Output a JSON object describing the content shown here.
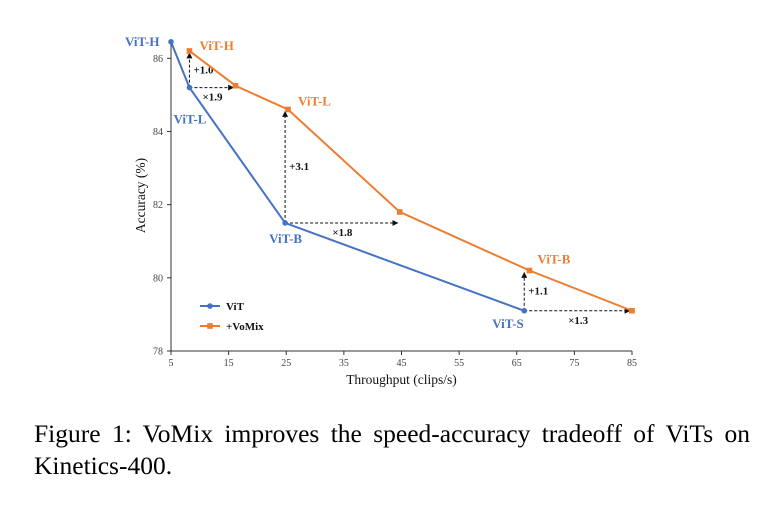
{
  "chart_data": {
    "type": "line",
    "xlabel": "Throughput (clips/s)",
    "ylabel": "Accuracy (%)",
    "xlim": [
      5,
      85
    ],
    "ylim": [
      78,
      86.5
    ],
    "xticks": [
      5,
      15,
      25,
      35,
      45,
      55,
      65,
      75,
      85
    ],
    "yticks": [
      78,
      80,
      82,
      84,
      86
    ],
    "series": [
      {
        "name": "ViT",
        "color": "#4472c4",
        "marker": "circle",
        "x": [
          5,
          8.2,
          24.8,
          66.3
        ],
        "y": [
          86.45,
          85.2,
          81.5,
          79.1
        ],
        "point_labels": [
          "ViT-H",
          "ViT-L",
          "ViT-B",
          "ViT-S"
        ]
      },
      {
        "name": "+VoMix",
        "color": "#ed7d31",
        "marker": "square",
        "x": [
          8.2,
          16.2,
          25.3,
          44.7,
          67.2,
          85
        ],
        "y": [
          86.2,
          85.25,
          84.6,
          81.8,
          80.2,
          79.1
        ],
        "point_labels": [
          "ViT-H",
          "",
          "ViT-L",
          "",
          "ViT-B",
          ""
        ]
      }
    ],
    "annotations": [
      {
        "type": "vertical",
        "label": "+1.0",
        "x": 8.2,
        "y_from": 85.2,
        "y_to": 86.2
      },
      {
        "type": "horizontal",
        "label": "×1.9",
        "y": 85.2,
        "x_from": 8.2,
        "x_to": 16.2
      },
      {
        "type": "vertical",
        "label": "+3.1",
        "x": 24.8,
        "y_from": 81.5,
        "y_to": 84.6
      },
      {
        "type": "horizontal",
        "label": "×1.8",
        "y": 81.5,
        "x_from": 24.8,
        "x_to": 44.7
      },
      {
        "type": "vertical",
        "label": "+1.1",
        "x": 66.3,
        "y_from": 79.1,
        "y_to": 80.2
      },
      {
        "type": "horizontal",
        "label": "×1.3",
        "y": 79.1,
        "x_from": 66.3,
        "x_to": 85
      }
    ],
    "legend": {
      "placement": "bottom-left",
      "entries": [
        "ViT",
        "+VoMix"
      ]
    }
  },
  "caption": "Figure 1: VoMix improves the speed-accuracy tradeoff of ViTs on Kinetics-400."
}
